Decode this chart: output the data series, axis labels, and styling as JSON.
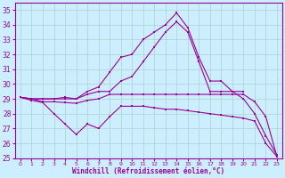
{
  "xlabel": "Windchill (Refroidissement éolien,°C)",
  "xlim": [
    -0.5,
    23.5
  ],
  "ylim": [
    25,
    35.5
  ],
  "yticks": [
    25,
    26,
    27,
    28,
    29,
    30,
    31,
    32,
    33,
    34,
    35
  ],
  "xticks": [
    0,
    1,
    2,
    3,
    4,
    5,
    6,
    7,
    8,
    9,
    10,
    11,
    12,
    13,
    14,
    15,
    16,
    17,
    18,
    19,
    20,
    21,
    22,
    23
  ],
  "line_color": "#990099",
  "bg_color": "#cceeff",
  "grid_color": "#aad4cc",
  "lineA_x": [
    0,
    1,
    2,
    3,
    4,
    5,
    6,
    7,
    8,
    9,
    10,
    11,
    12,
    13,
    14,
    15,
    16,
    17,
    18,
    19,
    20,
    21,
    22,
    23
  ],
  "lineA_y": [
    29.1,
    28.9,
    28.75,
    28.0,
    27.3,
    26.6,
    27.3,
    27.0,
    27.8,
    28.5,
    28.5,
    28.5,
    28.4,
    28.3,
    28.3,
    28.2,
    28.1,
    28.0,
    27.9,
    27.8,
    27.7,
    27.5,
    26.0,
    25.1
  ],
  "lineB_x": [
    0,
    1,
    2,
    3,
    4,
    5,
    6,
    7,
    8,
    9,
    10,
    11,
    12,
    13,
    14,
    15,
    16,
    17,
    18,
    19,
    20,
    21,
    22,
    23
  ],
  "lineB_y": [
    29.1,
    29.0,
    28.8,
    28.8,
    28.75,
    28.7,
    28.9,
    29.0,
    29.3,
    29.3,
    29.3,
    29.3,
    29.3,
    29.3,
    29.3,
    29.3,
    29.3,
    29.3,
    29.3,
    29.3,
    29.3,
    28.8,
    27.8,
    25.1
  ],
  "lineC_x": [
    0,
    1,
    2,
    3,
    4,
    5,
    6,
    7,
    8,
    9,
    10,
    11,
    12,
    13,
    14,
    15,
    16,
    17,
    18,
    19,
    20
  ],
  "lineC_y": [
    29.1,
    29.0,
    29.0,
    29.0,
    29.1,
    29.0,
    29.5,
    29.8,
    30.8,
    31.8,
    32.0,
    33.0,
    33.5,
    34.0,
    34.8,
    33.8,
    31.8,
    30.2,
    30.2,
    29.5,
    29.5
  ],
  "lineD_x": [
    0,
    1,
    2,
    3,
    4,
    5,
    6,
    7,
    8,
    9,
    10,
    11,
    12,
    13,
    14,
    15,
    16,
    17,
    18,
    19,
    20,
    21,
    22,
    23
  ],
  "lineD_y": [
    29.1,
    29.0,
    29.0,
    29.0,
    29.0,
    29.0,
    29.3,
    29.5,
    29.5,
    30.2,
    30.5,
    31.5,
    32.5,
    33.5,
    34.2,
    33.5,
    31.5,
    29.5,
    29.5,
    29.5,
    29.0,
    28.0,
    26.5,
    25.2
  ]
}
